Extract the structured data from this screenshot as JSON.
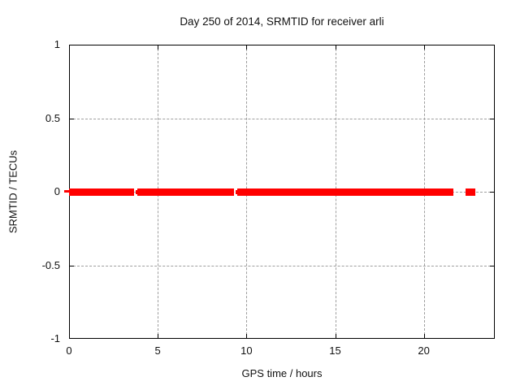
{
  "chart_data": {
    "type": "scatter",
    "title": "Day 250 of 2014, SRMTID for receiver arli",
    "xlabel": "GPS time / hours",
    "ylabel": "SRMTID / TECUs",
    "xlim": [
      0,
      24
    ],
    "ylim": [
      -1,
      1
    ],
    "xticks": [
      0,
      5,
      10,
      15,
      20
    ],
    "yticks": [
      1,
      0.5,
      0,
      -0.5,
      -1
    ],
    "ytick_labels": [
      "1",
      "0.5",
      "0",
      "-0.5",
      "-1"
    ],
    "grid": true,
    "legend": "none",
    "series": [
      {
        "name": "SRMTID",
        "color": "#ff0000",
        "marker": "filled-square",
        "y_value": 0,
        "x_segments": [
          [
            0.0,
            3.66
          ],
          [
            3.74,
            3.79,
            5
          ],
          [
            3.85,
            9.3
          ],
          [
            9.37,
            9.41,
            5
          ],
          [
            9.48,
            21.66
          ],
          [
            22.35,
            22.9
          ]
        ]
      }
    ],
    "description": "Red filled square markers all lying on SRMTID = 0 from hour 0 to ~21.7, small dropouts near hours 3.8 and 9.4, and an isolated cluster near hours 22.4-22.9"
  },
  "colors": {
    "background": "#ffffff",
    "data": "#ff0000",
    "grid": "#9e9e9e",
    "axis": "#000000",
    "text": "#111111"
  }
}
